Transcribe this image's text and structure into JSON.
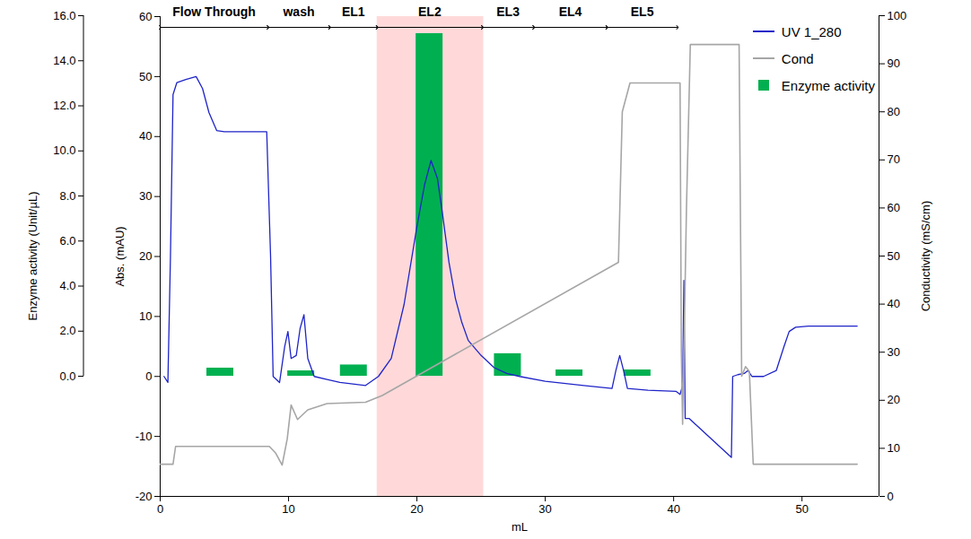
{
  "chart_data": {
    "type": "line",
    "x_label": "mL",
    "xlim": [
      0,
      56
    ],
    "xticks": [
      0,
      10,
      20,
      30,
      40,
      50
    ],
    "y_label": "Abs. (mAU)",
    "ylim": [
      -20,
      60
    ],
    "yticks": [
      -20,
      -10,
      0,
      10,
      20,
      30,
      40,
      50,
      60
    ],
    "y2_label": "Conductivity (mS/cm)",
    "y2lim": [
      0,
      100
    ],
    "y2ticks": [
      0,
      10,
      20,
      30,
      40,
      50,
      60,
      70,
      80,
      90,
      100
    ],
    "y3_label": "Enzyme activity (Unit/µL)",
    "y3lim": [
      0,
      16
    ],
    "y3ticks": [
      {
        "value": 0,
        "label": "0.0"
      },
      {
        "value": 2,
        "label": "2.0"
      },
      {
        "value": 4,
        "label": "4.0"
      },
      {
        "value": 6,
        "label": "6.0"
      },
      {
        "value": 8,
        "label": "8.0"
      },
      {
        "value": 10,
        "label": "10.0"
      },
      {
        "value": 12,
        "label": "12.0"
      },
      {
        "value": 14,
        "label": "14.0"
      },
      {
        "value": 16,
        "label": "16.0"
      }
    ],
    "legend": "top-right",
    "series": [
      {
        "name": "UV 1_280",
        "type": "line",
        "color": "#1f24c8",
        "x": [
          0.3,
          0.6,
          0.8,
          1.0,
          1.3,
          2.0,
          2.8,
          3.3,
          3.8,
          4.4,
          5.0,
          8.3,
          8.6,
          8.8,
          9.3,
          9.7,
          9.95,
          10.2,
          10.6,
          10.9,
          11.2,
          11.5,
          12.0,
          13.0,
          14.0,
          16.0,
          17.0,
          18.0,
          19.0,
          20.0,
          20.6,
          21.1,
          21.6,
          22.0,
          22.5,
          23.0,
          23.5,
          24.0,
          25.0,
          26.0,
          27.0,
          28.0,
          30.0,
          33.0,
          35.2,
          35.5,
          35.8,
          36.1,
          36.4,
          38.0,
          40.2,
          40.5,
          40.7,
          40.8,
          40.9,
          41.2,
          44.5,
          44.6,
          45.0,
          45.5,
          45.8,
          46.1,
          47.0,
          48.0,
          48.6,
          49.0,
          49.5,
          50.5,
          54.3
        ],
        "values": [
          0,
          -1,
          20,
          47,
          49,
          49.5,
          50,
          48,
          44,
          41,
          40.8,
          40.8,
          20,
          0,
          -1,
          5,
          7.5,
          3,
          3.5,
          8,
          10.3,
          3,
          0,
          -0.5,
          -1,
          -1.5,
          0,
          3,
          12,
          25,
          32,
          36,
          33,
          27,
          19,
          13,
          9,
          6,
          3.5,
          1.5,
          0.5,
          0,
          -0.8,
          -1.5,
          -2,
          1,
          3.5,
          1,
          -2,
          -2.3,
          -2.5,
          -3,
          -1.5,
          16,
          -7,
          -7,
          -13.5,
          0,
          0.3,
          0.5,
          1,
          0,
          0,
          1,
          5,
          7.5,
          8.2,
          8.4,
          8.4
        ]
      },
      {
        "name": "Cond",
        "type": "line",
        "axis": "y2",
        "color": "#a6a6a6",
        "x": [
          0,
          1.0,
          1.2,
          8.5,
          9.0,
          9.5,
          9.9,
          10.2,
          10.7,
          11.5,
          13.0,
          16.0,
          17.3,
          35.7,
          36.0,
          36.6,
          40.5,
          40.6,
          40.7,
          41.0,
          41.3,
          45.1,
          45.3,
          45.6,
          45.9,
          46.2,
          54.3
        ],
        "values": [
          6.7,
          6.7,
          10.4,
          10.4,
          9,
          6.5,
          12,
          19,
          16,
          18,
          19.3,
          19.6,
          21,
          48.7,
          80,
          86,
          86,
          30,
          15,
          60,
          94,
          94,
          25,
          27,
          26,
          6.7,
          6.7
        ]
      },
      {
        "name": "Enzyme activity",
        "type": "bar",
        "axis": "y3",
        "color": "#00b050",
        "x": [
          4.65,
          10.95,
          15.05,
          20.95,
          27.05,
          31.85,
          37.15
        ],
        "values": [
          0.36,
          0.24,
          0.5,
          15.2,
          1.0,
          0.28,
          0.28
        ]
      }
    ],
    "fractions": [
      {
        "label": "Flow Through",
        "start": 0,
        "end": 8.4
      },
      {
        "label": "wash",
        "start": 8.4,
        "end": 13.2
      },
      {
        "label": "EL1",
        "start": 13.2,
        "end": 16.9
      },
      {
        "label": "EL2",
        "start": 16.9,
        "end": 25.1
      },
      {
        "label": "EL3",
        "start": 25.1,
        "end": 29.1
      },
      {
        "label": "EL4",
        "start": 29.1,
        "end": 34.8
      },
      {
        "label": "EL5",
        "start": 34.8,
        "end": 40.3
      }
    ],
    "highlight": {
      "start": 16.9,
      "end": 25.2,
      "color": "#ffd9d9"
    }
  }
}
